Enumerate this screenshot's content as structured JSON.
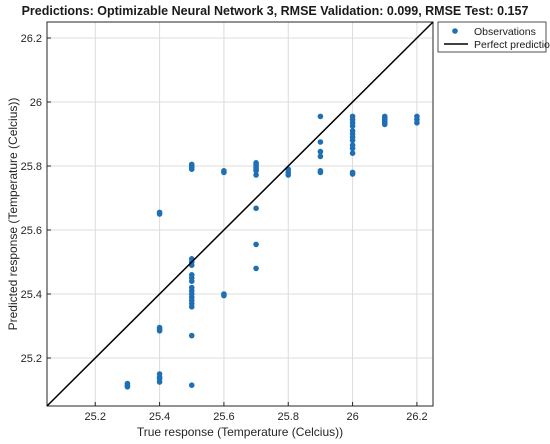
{
  "chart_data": {
    "type": "scatter",
    "title": "Predictions: Optimizable Neural Network 3, RMSE Validation: 0.099, RMSE Test: 0.157",
    "xlabel": "True response (Temperature (Celcius))",
    "ylabel": "Predicted response (Temperature (Celcius))",
    "xlim": [
      25.05,
      26.25
    ],
    "ylim": [
      25.05,
      26.25
    ],
    "xticks": [
      "25.2",
      "25.4",
      "25.6",
      "25.8",
      "26",
      "26.2"
    ],
    "yticks": [
      "25.2",
      "25.4",
      "25.6",
      "25.8",
      "26",
      "26.2"
    ],
    "grid": true,
    "legend_position": "top-right",
    "colors": {
      "observations": "#1f6fb5",
      "perfect_prediction": "#000000"
    },
    "series": [
      {
        "name": "Observations",
        "points": [
          [
            25.3,
            25.11
          ],
          [
            25.3,
            25.12
          ],
          [
            25.3,
            25.115
          ],
          [
            25.4,
            25.125
          ],
          [
            25.4,
            25.135
          ],
          [
            25.4,
            25.14
          ],
          [
            25.4,
            25.15
          ],
          [
            25.4,
            25.285
          ],
          [
            25.4,
            25.29
          ],
          [
            25.4,
            25.295
          ],
          [
            25.4,
            25.65
          ],
          [
            25.4,
            25.655
          ],
          [
            25.5,
            25.115
          ],
          [
            25.5,
            25.27
          ],
          [
            25.5,
            25.36
          ],
          [
            25.5,
            25.37
          ],
          [
            25.5,
            25.38
          ],
          [
            25.5,
            25.39
          ],
          [
            25.5,
            25.4
          ],
          [
            25.5,
            25.41
          ],
          [
            25.5,
            25.42
          ],
          [
            25.5,
            25.44
          ],
          [
            25.5,
            25.45
          ],
          [
            25.5,
            25.46
          ],
          [
            25.5,
            25.49
          ],
          [
            25.5,
            25.5
          ],
          [
            25.5,
            25.51
          ],
          [
            25.5,
            25.79
          ],
          [
            25.5,
            25.795
          ],
          [
            25.5,
            25.8
          ],
          [
            25.5,
            25.805
          ],
          [
            25.6,
            25.395
          ],
          [
            25.6,
            25.4
          ],
          [
            25.6,
            25.78
          ],
          [
            25.6,
            25.785
          ],
          [
            25.7,
            25.48
          ],
          [
            25.7,
            25.555
          ],
          [
            25.7,
            25.668
          ],
          [
            25.7,
            25.772
          ],
          [
            25.7,
            25.785
          ],
          [
            25.7,
            25.79
          ],
          [
            25.7,
            25.795
          ],
          [
            25.7,
            25.8
          ],
          [
            25.7,
            25.805
          ],
          [
            25.7,
            25.81
          ],
          [
            25.8,
            25.772
          ],
          [
            25.8,
            25.78
          ],
          [
            25.8,
            25.79
          ],
          [
            25.9,
            25.78
          ],
          [
            25.9,
            25.785
          ],
          [
            25.9,
            25.83
          ],
          [
            25.9,
            25.845
          ],
          [
            25.9,
            25.875
          ],
          [
            25.9,
            25.955
          ],
          [
            26.0,
            25.775
          ],
          [
            26.0,
            25.78
          ],
          [
            26.0,
            25.84
          ],
          [
            26.0,
            25.855
          ],
          [
            26.0,
            25.865
          ],
          [
            26.0,
            25.88
          ],
          [
            26.0,
            25.89
          ],
          [
            26.0,
            25.9
          ],
          [
            26.0,
            25.91
          ],
          [
            26.0,
            25.925
          ],
          [
            26.0,
            25.935
          ],
          [
            26.0,
            25.945
          ],
          [
            26.0,
            25.955
          ],
          [
            26.1,
            25.93
          ],
          [
            26.1,
            25.935
          ],
          [
            26.1,
            25.94
          ],
          [
            26.1,
            25.945
          ],
          [
            26.1,
            25.95
          ],
          [
            26.1,
            25.955
          ],
          [
            26.2,
            25.935
          ],
          [
            26.2,
            25.945
          ],
          [
            26.2,
            25.955
          ]
        ]
      },
      {
        "name": "Perfect prediction",
        "line": [
          [
            25.05,
            25.05
          ],
          [
            26.25,
            26.25
          ]
        ]
      }
    ]
  }
}
